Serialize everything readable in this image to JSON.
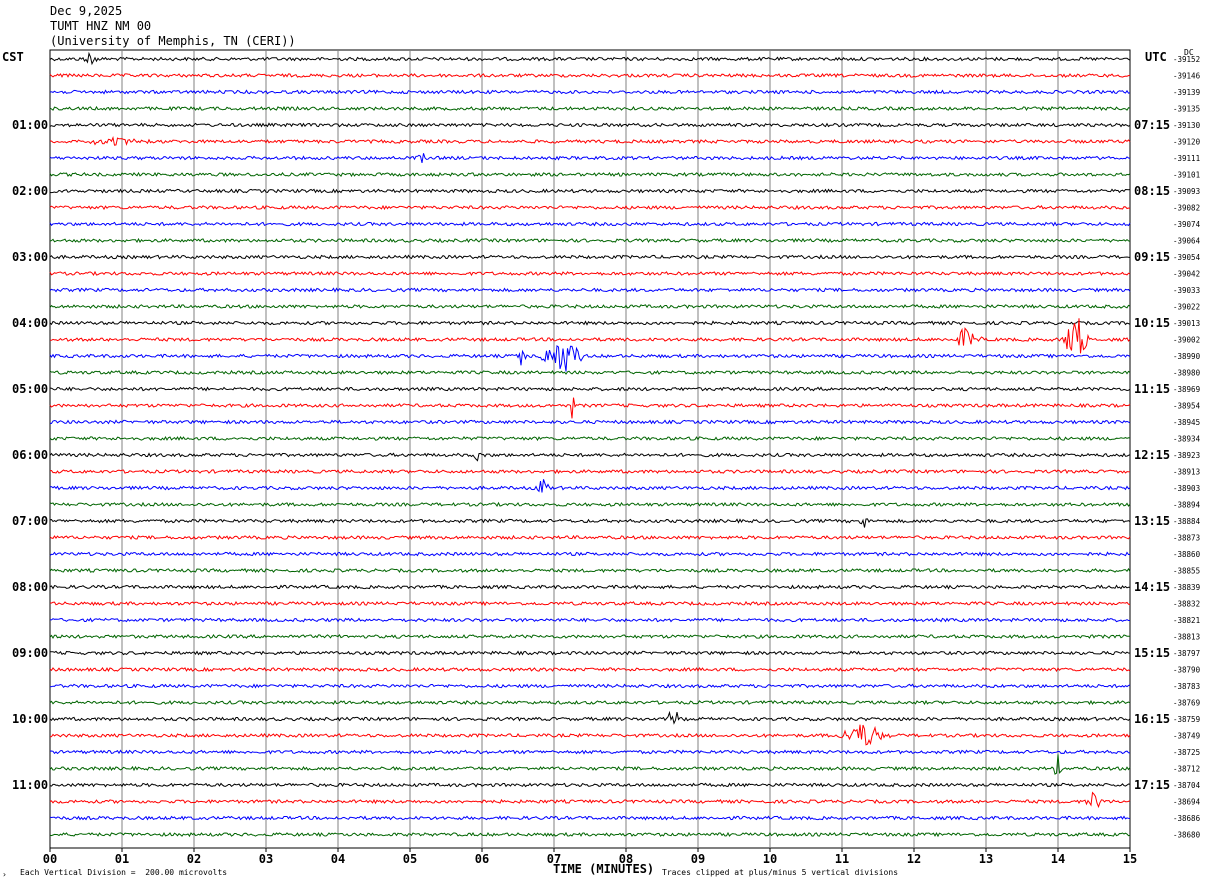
{
  "header": {
    "date": "Dec 9,2025",
    "station": "TUMT HNZ NM 00",
    "institution": "(University of Memphis, TN (CERI))"
  },
  "left_tz": "CST",
  "right_tz": "UTC",
  "dc_label": "DC",
  "footer": {
    "scale_note": "Each Vertical Division =  200.00 microvolts",
    "clip_note": "Traces clipped at plus/minus 5 vertical divisions",
    "mark": "›"
  },
  "colors": {
    "trace_cycle": [
      "#000000",
      "#ff0000",
      "#0000ff",
      "#006400"
    ],
    "grid": "#808080"
  },
  "chart_data": {
    "type": "line",
    "title": "Dec 9,2025 TUMT HNZ NM 00 (University of Memphis, TN (CERI))",
    "xlabel": "TIME (MINUTES)",
    "ylabel": "",
    "xlim": [
      0,
      15
    ],
    "x_ticks": [
      "00",
      "01",
      "02",
      "03",
      "04",
      "05",
      "06",
      "07",
      "08",
      "09",
      "10",
      "11",
      "12",
      "13",
      "14",
      "15"
    ],
    "grid": true,
    "num_traces": 48,
    "minutes_per_trace": 15,
    "left_hour_labels": [
      {
        "trace": 4,
        "label": "01:00"
      },
      {
        "trace": 8,
        "label": "02:00"
      },
      {
        "trace": 12,
        "label": "03:00"
      },
      {
        "trace": 16,
        "label": "04:00"
      },
      {
        "trace": 20,
        "label": "05:00"
      },
      {
        "trace": 24,
        "label": "06:00"
      },
      {
        "trace": 28,
        "label": "07:00"
      },
      {
        "trace": 32,
        "label": "08:00"
      },
      {
        "trace": 36,
        "label": "09:00"
      },
      {
        "trace": 40,
        "label": "10:00"
      },
      {
        "trace": 44,
        "label": "11:00"
      }
    ],
    "right_hour_labels": [
      {
        "trace": 4,
        "label": "07:15"
      },
      {
        "trace": 8,
        "label": "08:15"
      },
      {
        "trace": 12,
        "label": "09:15"
      },
      {
        "trace": 16,
        "label": "10:15"
      },
      {
        "trace": 20,
        "label": "11:15"
      },
      {
        "trace": 24,
        "label": "12:15"
      },
      {
        "trace": 28,
        "label": "13:15"
      },
      {
        "trace": 32,
        "label": "14:15"
      },
      {
        "trace": 36,
        "label": "15:15"
      },
      {
        "trace": 40,
        "label": "16:15"
      },
      {
        "trace": 44,
        "label": "17:15"
      }
    ],
    "dc_offsets": [
      "-39152",
      "-39146",
      "-39139",
      "-39135",
      "-39130",
      "-39120",
      "-39111",
      "-39101",
      "-39093",
      "-39082",
      "-39074",
      "-39064",
      "-39054",
      "-39042",
      "-39033",
      "-39022",
      "-39013",
      "-39002",
      "-38990",
      "-38980",
      "-38969",
      "-38954",
      "-38945",
      "-38934",
      "-38923",
      "-38913",
      "-38903",
      "-38894",
      "-38884",
      "-38873",
      "-38860",
      "-38855",
      "-38839",
      "-38832",
      "-38821",
      "-38813",
      "-38797",
      "-38790",
      "-38783",
      "-38769",
      "-38759",
      "-38749",
      "-38725",
      "-38712",
      "-38704",
      "-38694",
      "-38686",
      "-38680"
    ],
    "events": [
      {
        "trace": 0,
        "minute": 0.55,
        "amp": 7,
        "width": 0.12
      },
      {
        "trace": 5,
        "minute": 0.9,
        "amp": 5,
        "width": 0.5
      },
      {
        "trace": 6,
        "minute": 5.15,
        "amp": 7,
        "width": 0.08
      },
      {
        "trace": 17,
        "minute": 12.75,
        "amp": 18,
        "width": 0.2
      },
      {
        "trace": 17,
        "minute": 14.25,
        "amp": 28,
        "width": 0.2
      },
      {
        "trace": 18,
        "minute": 6.55,
        "amp": 12,
        "width": 0.08
      },
      {
        "trace": 18,
        "minute": 7.1,
        "amp": 20,
        "width": 0.35
      },
      {
        "trace": 21,
        "minute": 7.25,
        "amp": 14,
        "width": 0.04
      },
      {
        "trace": 24,
        "minute": 5.95,
        "amp": 10,
        "width": 0.1
      },
      {
        "trace": 26,
        "minute": 6.85,
        "amp": 14,
        "width": 0.1
      },
      {
        "trace": 28,
        "minute": 11.3,
        "amp": 12,
        "width": 0.06
      },
      {
        "trace": 40,
        "minute": 8.65,
        "amp": 14,
        "width": 0.1
      },
      {
        "trace": 41,
        "minute": 11.3,
        "amp": 14,
        "width": 0.4
      },
      {
        "trace": 43,
        "minute": 14.0,
        "amp": 14,
        "width": 0.08
      },
      {
        "trace": 45,
        "minute": 14.5,
        "amp": 10,
        "width": 0.15
      }
    ]
  }
}
